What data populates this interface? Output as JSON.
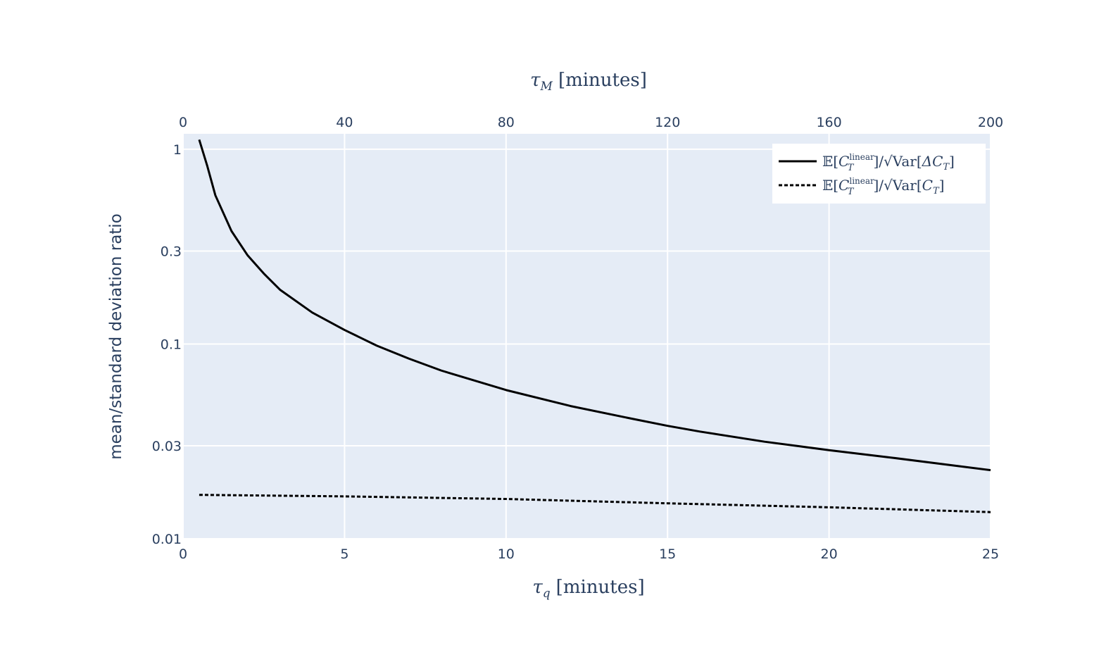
{
  "chart_data": {
    "type": "line",
    "title": "",
    "xlabel": {
      "symbol": "τ",
      "subscript": "q",
      "unit": "[minutes]"
    },
    "x2label": {
      "symbol": "τ",
      "subscript": "M",
      "unit": "[minutes]"
    },
    "ylabel": "mean/standard deviation ratio",
    "xlim": [
      0,
      25
    ],
    "x2lim": [
      0,
      200
    ],
    "ylim": [
      0.01,
      1.2
    ],
    "yscale": "log",
    "grid": true,
    "x_ticks": [
      {
        "value": 0,
        "label": "0"
      },
      {
        "value": 5,
        "label": "5"
      },
      {
        "value": 10,
        "label": "10"
      },
      {
        "value": 15,
        "label": "15"
      },
      {
        "value": 20,
        "label": "20"
      },
      {
        "value": 25,
        "label": "25"
      }
    ],
    "x2_ticks": [
      {
        "value": 0,
        "label": "0"
      },
      {
        "value": 40,
        "label": "40"
      },
      {
        "value": 80,
        "label": "80"
      },
      {
        "value": 120,
        "label": "120"
      },
      {
        "value": 160,
        "label": "160"
      },
      {
        "value": 200,
        "label": "200"
      }
    ],
    "y_ticks": [
      {
        "value": 1,
        "label": "1"
      },
      {
        "value": 0.3,
        "label": "0.3"
      },
      {
        "value": 0.1,
        "label": "0.1"
      },
      {
        "value": 0.03,
        "label": "0.03"
      },
      {
        "value": 0.01,
        "label": "0.01"
      }
    ],
    "legend_position": "top-right",
    "series": [
      {
        "name": "E[C_T^linear]/sqrt(Var[ΔC_T])",
        "legend_den": "ΔC",
        "dash": "solid",
        "color": "#000000",
        "x": [
          0.5,
          0.75,
          1,
          1.5,
          2,
          2.5,
          3,
          4,
          5,
          6,
          7,
          8,
          10,
          12,
          14,
          15,
          16,
          18,
          20,
          22,
          25
        ],
        "y": [
          1.12,
          0.82,
          0.58,
          0.38,
          0.285,
          0.23,
          0.19,
          0.145,
          0.118,
          0.098,
          0.084,
          0.073,
          0.058,
          0.048,
          0.041,
          0.038,
          0.0355,
          0.0315,
          0.0285,
          0.026,
          0.0225
        ]
      },
      {
        "name": "E[C_T^linear]/sqrt(Var[C_T])",
        "legend_den": "C",
        "dash": "dot",
        "color": "#000000",
        "x": [
          0.5,
          5,
          10,
          15,
          20,
          25
        ],
        "y": [
          0.0168,
          0.0165,
          0.016,
          0.0152,
          0.0145,
          0.0137
        ]
      }
    ]
  }
}
